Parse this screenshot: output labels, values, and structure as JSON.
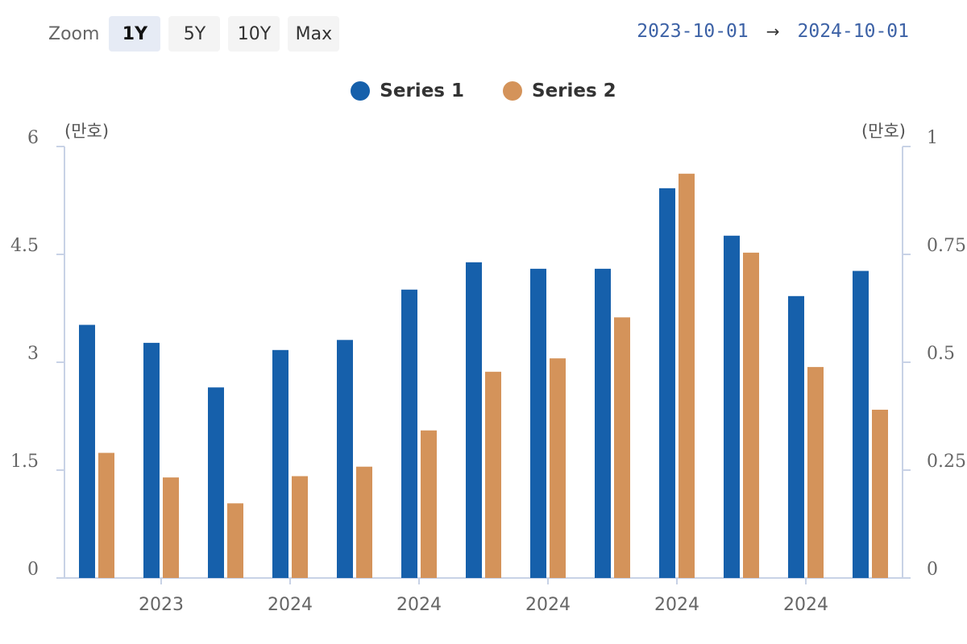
{
  "zoom": {
    "label": "Zoom",
    "buttons": [
      {
        "label": "1Y",
        "active": true
      },
      {
        "label": "5Y",
        "active": false
      },
      {
        "label": "10Y",
        "active": false
      },
      {
        "label": "Max",
        "active": false
      }
    ]
  },
  "range": {
    "from": "2023-10-01",
    "arrow": "→",
    "to": "2024-10-01"
  },
  "colors": {
    "series1": "#1660ab",
    "series2": "#d4935a",
    "axis": "#c8d2e6"
  },
  "chart_data": {
    "type": "bar",
    "legend_position": "top-center",
    "grid": false,
    "x_tick_labels": [
      "2023",
      "2024",
      "2024",
      "2024",
      "2024",
      "2024"
    ],
    "left_axis": {
      "unit": "(만호)",
      "range": [
        0,
        6
      ],
      "ticks": [
        "0",
        "1.5",
        "3",
        "4.5",
        "6"
      ]
    },
    "right_axis": {
      "unit": "(만호)",
      "range": [
        0,
        1
      ],
      "ticks": [
        "0",
        "0.25",
        "0.5",
        "0.75",
        "1"
      ]
    },
    "series": [
      {
        "name": "Series 1",
        "axis": "left",
        "values": [
          3.52,
          3.27,
          2.65,
          3.17,
          3.31,
          4.01,
          4.39,
          4.3,
          4.3,
          5.42,
          4.76,
          3.92,
          4.27
        ]
      },
      {
        "name": "Series 2",
        "axis": "right",
        "values": [
          0.29,
          0.233,
          0.173,
          0.236,
          0.258,
          0.342,
          0.478,
          0.509,
          0.604,
          0.937,
          0.754,
          0.489,
          0.39
        ]
      }
    ]
  }
}
